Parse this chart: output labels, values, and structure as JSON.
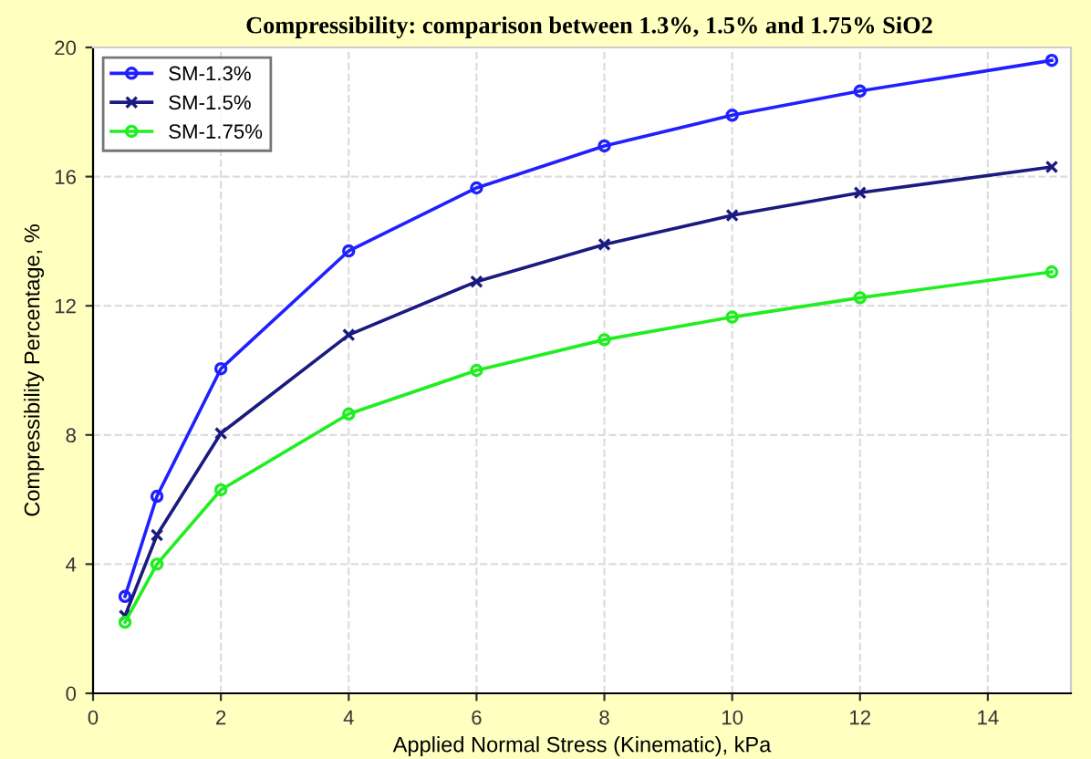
{
  "chart_data": {
    "type": "line",
    "title": "Compressibility: comparison between 1.3%, 1.5% and 1.75% SiO2",
    "xlabel": "Applied Normal Stress (Kinematic), kPa",
    "ylabel": "Compressibility Percentage, %",
    "x": [
      0.5,
      1,
      2,
      4,
      6,
      8,
      10,
      12,
      15
    ],
    "series": [
      {
        "name": "SM-1.3%",
        "color": "#2020ff",
        "marker": "circle",
        "values": [
          3.0,
          6.1,
          10.05,
          13.7,
          15.65,
          16.95,
          17.9,
          18.65,
          19.6
        ]
      },
      {
        "name": "SM-1.5%",
        "color": "#1a1a80",
        "marker": "cross",
        "values": [
          2.4,
          4.9,
          8.05,
          11.1,
          12.75,
          13.9,
          14.8,
          15.5,
          16.3
        ]
      },
      {
        "name": "SM-1.75%",
        "color": "#20ee20",
        "marker": "circle",
        "values": [
          2.2,
          4.0,
          6.3,
          8.65,
          10.0,
          10.95,
          11.65,
          12.25,
          13.05
        ]
      }
    ],
    "xlim": [
      0,
      15.3
    ],
    "xticks": [
      0,
      2,
      4,
      6,
      8,
      10,
      12,
      14
    ],
    "ylim": [
      0,
      20
    ],
    "yticks": [
      0,
      4,
      8,
      12,
      16,
      20
    ],
    "grid": true,
    "legend": "top left",
    "line_style": "solid"
  }
}
